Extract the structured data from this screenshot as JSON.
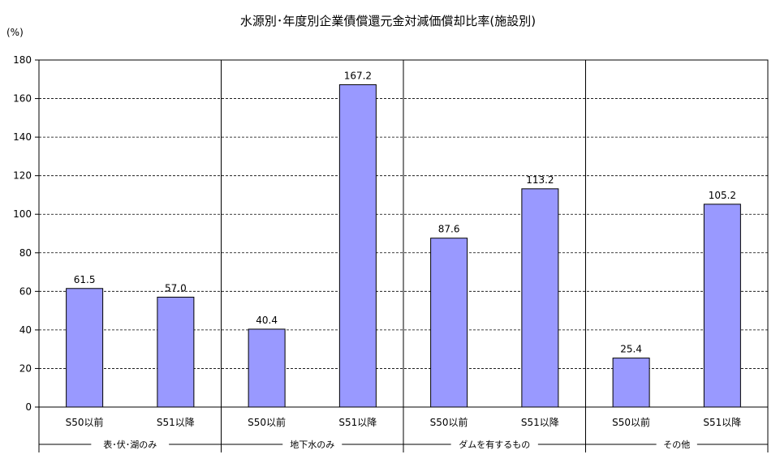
{
  "chart_data": {
    "type": "bar",
    "title": "水源別･年度別企業債償還元金対減価償却比率(施設別)",
    "ylabel": "(%)",
    "ylim": [
      0,
      180
    ],
    "yticks": [
      0,
      20,
      40,
      60,
      80,
      100,
      120,
      140,
      160,
      180
    ],
    "grid": true,
    "bar_color": "#9999ff",
    "groups": [
      {
        "name": "表･伏･湖のみ",
        "categories": [
          "S50以前",
          "S51以降"
        ],
        "values": [
          61.5,
          57.0
        ],
        "labels": [
          "61.5",
          "57.0"
        ]
      },
      {
        "name": "地下水のみ",
        "categories": [
          "S50以前",
          "S51以降"
        ],
        "values": [
          40.4,
          167.2
        ],
        "labels": [
          "40.4",
          "167.2"
        ]
      },
      {
        "name": "ダムを有するもの",
        "categories": [
          "S50以前",
          "S51以降"
        ],
        "values": [
          87.6,
          113.2
        ],
        "labels": [
          "87.6",
          "113.2"
        ]
      },
      {
        "name": "その他",
        "categories": [
          "S50以前",
          "S51以降"
        ],
        "values": [
          25.4,
          105.2
        ],
        "labels": [
          "25.4",
          "105.2"
        ]
      }
    ]
  }
}
